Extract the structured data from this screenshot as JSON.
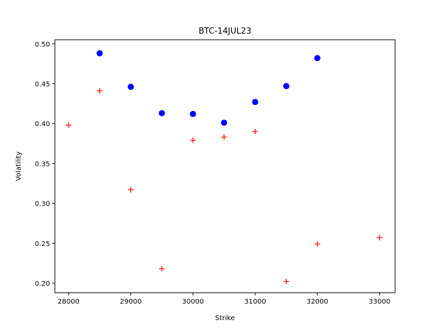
{
  "chart_data": {
    "type": "scatter",
    "title": "BTC-14JUL23",
    "xlabel": "Strike",
    "ylabel": "Volatility",
    "xlim": [
      27780,
      33250
    ],
    "ylim": [
      0.188,
      0.505
    ],
    "xticks": [
      28000,
      29000,
      30000,
      31000,
      32000,
      33000
    ],
    "yticks": [
      0.2,
      0.25,
      0.3,
      0.35,
      0.4,
      0.45,
      0.5
    ],
    "grid": false,
    "series": [
      {
        "marker": "circle",
        "color": "#0000ff",
        "points": [
          {
            "x": 28500,
            "y": 0.488
          },
          {
            "x": 29000,
            "y": 0.446
          },
          {
            "x": 29500,
            "y": 0.413
          },
          {
            "x": 30000,
            "y": 0.412
          },
          {
            "x": 30500,
            "y": 0.401
          },
          {
            "x": 31000,
            "y": 0.427
          },
          {
            "x": 31500,
            "y": 0.447
          },
          {
            "x": 32000,
            "y": 0.482
          }
        ]
      },
      {
        "marker": "plus",
        "color": "#ff0000",
        "points": [
          {
            "x": 28000,
            "y": 0.398
          },
          {
            "x": 28500,
            "y": 0.441
          },
          {
            "x": 29000,
            "y": 0.317
          },
          {
            "x": 29500,
            "y": 0.218
          },
          {
            "x": 30000,
            "y": 0.379
          },
          {
            "x": 30500,
            "y": 0.383
          },
          {
            "x": 31000,
            "y": 0.39
          },
          {
            "x": 31500,
            "y": 0.202
          },
          {
            "x": 32000,
            "y": 0.249
          },
          {
            "x": 33000,
            "y": 0.257
          }
        ]
      }
    ]
  }
}
